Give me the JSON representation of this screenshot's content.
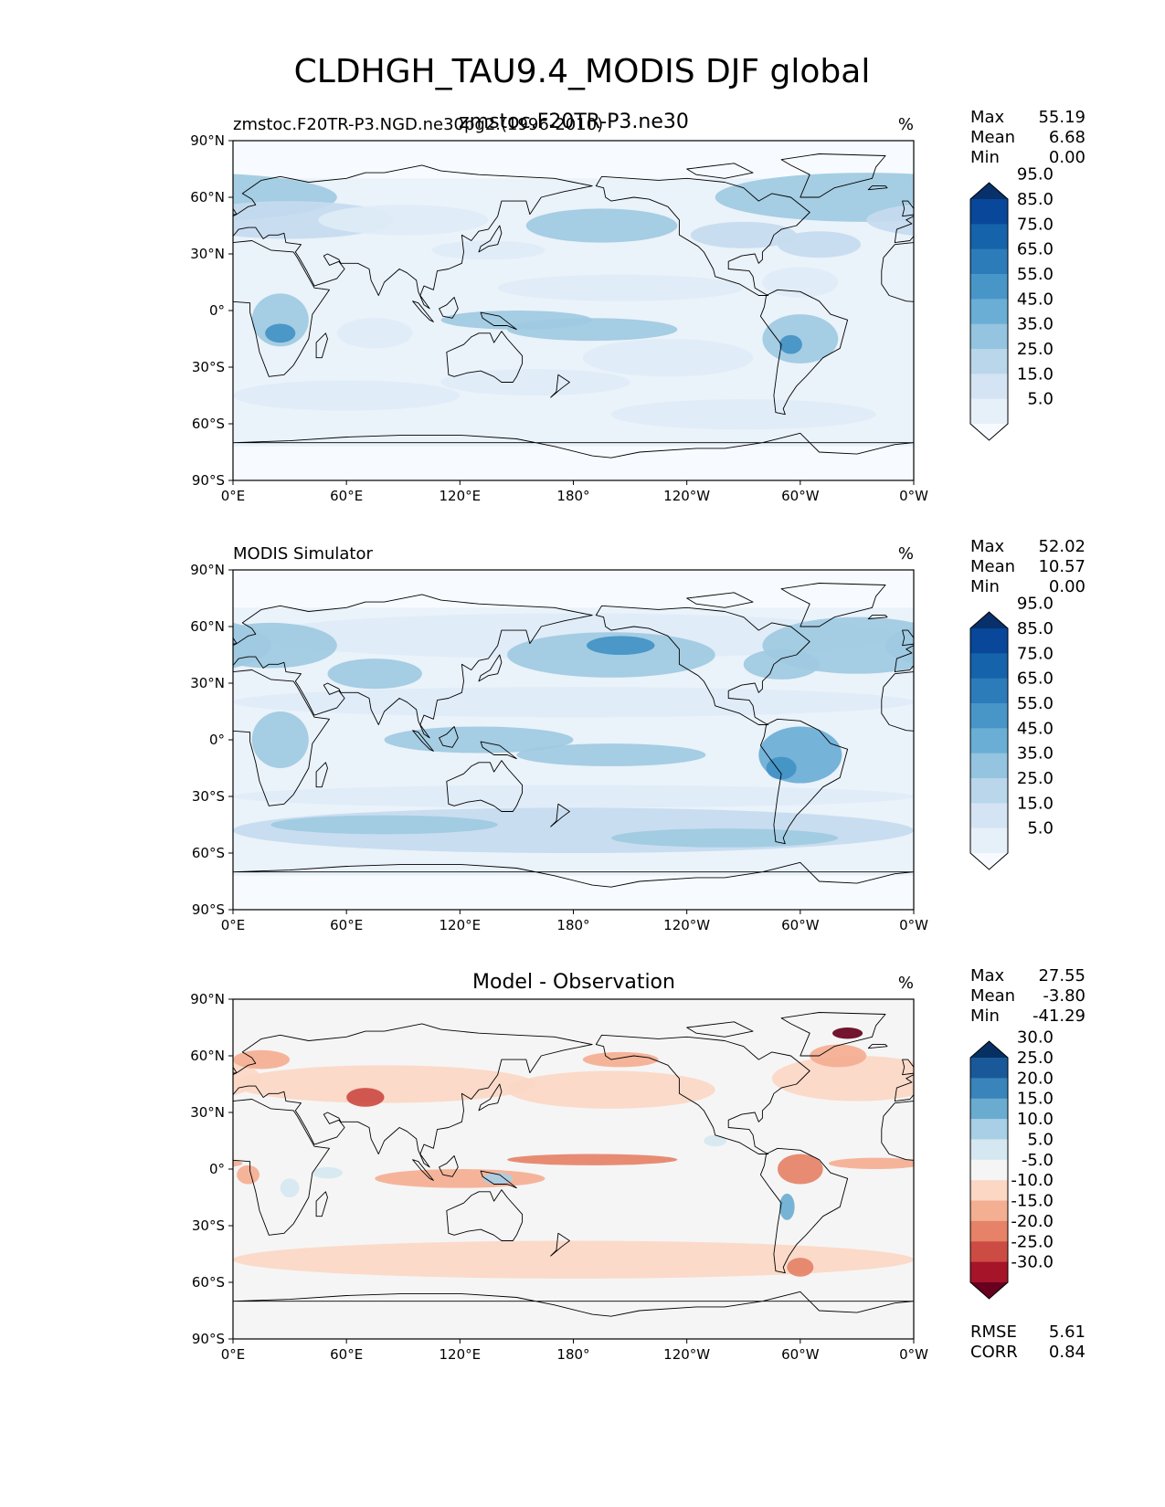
{
  "figure": {
    "title": "CLDHGH_TAU9.4_MODIS DJF global"
  },
  "chart_data": [
    {
      "type": "heatmap",
      "map_projection": "PlateCarree",
      "left_title": "zmstoc.F20TR-P3.NGD.ne30pg2.(1996-2010)",
      "overlapping_title": "zmstoc.F20TR-P3.ne30",
      "center_title": "",
      "units": "%",
      "stats": [
        {
          "label": "Max",
          "value": "55.19"
        },
        {
          "label": "Mean",
          "value": "6.68"
        },
        {
          "label": "Min",
          "value": "0.00"
        }
      ],
      "colorbar": {
        "colormap": "Blues",
        "levels": [
          "5.0",
          "15.0",
          "25.0",
          "35.0",
          "45.0",
          "55.0",
          "65.0",
          "75.0",
          "85.0",
          "95.0"
        ],
        "extend": "both"
      },
      "x_ticks": [
        "0°E",
        "60°E",
        "120°E",
        "180°",
        "120°W",
        "60°W",
        "0°W"
      ],
      "y_ticks": [
        "90°N",
        "60°N",
        "30°N",
        "0°",
        "30°S",
        "60°S",
        "90°S"
      ],
      "xlim": [
        0,
        360
      ],
      "ylim": [
        -90,
        90
      ],
      "grid": false,
      "features": [
        {
          "lon": 335,
          "lat": 60,
          "rx": 80,
          "ry": 13,
          "value": 18
        },
        {
          "lon": 30,
          "lat": 48,
          "rx": 55,
          "ry": 10,
          "value": 12
        },
        {
          "lon": 90,
          "lat": 48,
          "rx": 45,
          "ry": 8,
          "value": 10
        },
        {
          "lon": 195,
          "lat": 45,
          "rx": 40,
          "ry": 9,
          "value": 18
        },
        {
          "lon": 270,
          "lat": 40,
          "rx": 28,
          "ry": 7,
          "value": 15
        },
        {
          "lon": 310,
          "lat": 35,
          "rx": 22,
          "ry": 7,
          "value": 14
        },
        {
          "lon": 135,
          "lat": 32,
          "rx": 30,
          "ry": 5,
          "value": 10
        },
        {
          "lon": 205,
          "lat": 12,
          "rx": 65,
          "ry": 7,
          "value": 8
        },
        {
          "lon": 300,
          "lat": 15,
          "rx": 20,
          "ry": 8,
          "value": 10
        },
        {
          "lon": 25,
          "lat": -5,
          "rx": 15,
          "ry": 14,
          "value": 22
        },
        {
          "lon": 25,
          "lat": -12,
          "rx": 8,
          "ry": 5,
          "value": 33
        },
        {
          "lon": 75,
          "lat": -12,
          "rx": 20,
          "ry": 8,
          "value": 10
        },
        {
          "lon": 150,
          "lat": -5,
          "rx": 40,
          "ry": 5,
          "value": 22
        },
        {
          "lon": 190,
          "lat": -10,
          "rx": 45,
          "ry": 6,
          "value": 18
        },
        {
          "lon": 230,
          "lat": -25,
          "rx": 45,
          "ry": 10,
          "value": 9
        },
        {
          "lon": 300,
          "lat": -15,
          "rx": 20,
          "ry": 13,
          "value": 22
        },
        {
          "lon": 295,
          "lat": -18,
          "rx": 6,
          "ry": 5,
          "value": 33
        },
        {
          "lon": 160,
          "lat": -38,
          "rx": 50,
          "ry": 7,
          "value": 10
        },
        {
          "lon": 60,
          "lat": -45,
          "rx": 60,
          "ry": 8,
          "value": 10
        },
        {
          "lon": 270,
          "lat": -55,
          "rx": 70,
          "ry": 8,
          "value": 10
        }
      ]
    },
    {
      "type": "heatmap",
      "map_projection": "PlateCarree",
      "left_title": "MODIS Simulator",
      "center_title": "",
      "units": "%",
      "stats": [
        {
          "label": "Max",
          "value": "52.02"
        },
        {
          "label": "Mean",
          "value": "10.57"
        },
        {
          "label": "Min",
          "value": "0.00"
        }
      ],
      "colorbar": {
        "colormap": "Blues",
        "levels": [
          "5.0",
          "15.0",
          "25.0",
          "35.0",
          "45.0",
          "55.0",
          "65.0",
          "75.0",
          "85.0",
          "95.0"
        ],
        "extend": "both"
      },
      "x_ticks": [
        "0°E",
        "60°E",
        "120°E",
        "180°",
        "120°W",
        "60°W",
        "0°W"
      ],
      "y_ticks": [
        "90°N",
        "60°N",
        "30°N",
        "0°",
        "30°S",
        "60°S",
        "90°S"
      ],
      "xlim": [
        0,
        360
      ],
      "ylim": [
        -90,
        90
      ],
      "grid": false,
      "features": [
        {
          "lon": 180,
          "lat": 55,
          "rx": 170,
          "ry": 12,
          "value": 10
        },
        {
          "lon": 20,
          "lat": 50,
          "rx": 35,
          "ry": 12,
          "value": 20
        },
        {
          "lon": 75,
          "lat": 35,
          "rx": 25,
          "ry": 8,
          "value": 22
        },
        {
          "lon": 200,
          "lat": 45,
          "rx": 55,
          "ry": 12,
          "value": 22
        },
        {
          "lon": 205,
          "lat": 50,
          "rx": 18,
          "ry": 5,
          "value": 30
        },
        {
          "lon": 330,
          "lat": 50,
          "rx": 50,
          "ry": 15,
          "value": 22
        },
        {
          "lon": 290,
          "lat": 40,
          "rx": 20,
          "ry": 8,
          "value": 20
        },
        {
          "lon": 180,
          "lat": 20,
          "rx": 180,
          "ry": 8,
          "value": 10
        },
        {
          "lon": 25,
          "lat": 0,
          "rx": 15,
          "ry": 15,
          "value": 22
        },
        {
          "lon": 130,
          "lat": 0,
          "rx": 50,
          "ry": 7,
          "value": 22
        },
        {
          "lon": 200,
          "lat": -8,
          "rx": 50,
          "ry": 6,
          "value": 18
        },
        {
          "lon": 300,
          "lat": -8,
          "rx": 22,
          "ry": 15,
          "value": 25
        },
        {
          "lon": 290,
          "lat": -15,
          "rx": 8,
          "ry": 6,
          "value": 35
        },
        {
          "lon": 180,
          "lat": -48,
          "rx": 180,
          "ry": 12,
          "value": 15
        },
        {
          "lon": 180,
          "lat": -30,
          "rx": 180,
          "ry": 6,
          "value": 8
        },
        {
          "lon": 80,
          "lat": -45,
          "rx": 60,
          "ry": 5,
          "value": 20
        },
        {
          "lon": 260,
          "lat": -52,
          "rx": 60,
          "ry": 5,
          "value": 20
        }
      ]
    },
    {
      "type": "heatmap",
      "map_projection": "PlateCarree",
      "left_title": "",
      "center_title": "Model - Observation",
      "units": "%",
      "stats": [
        {
          "label": "Max",
          "value": "27.55"
        },
        {
          "label": "Mean",
          "value": "-3.80"
        },
        {
          "label": "Min",
          "value": "-41.29"
        }
      ],
      "bottom_stats": [
        {
          "label": "RMSE",
          "value": "5.61"
        },
        {
          "label": "CORR",
          "value": "0.84"
        }
      ],
      "colorbar": {
        "colormap": "RdBu",
        "levels": [
          "-30.0",
          "-25.0",
          "-20.0",
          "-15.0",
          "-10.0",
          "-5.0",
          "5.0",
          "10.0",
          "15.0",
          "20.0",
          "25.0",
          "30.0"
        ],
        "extend": "both"
      },
      "x_ticks": [
        "0°E",
        "60°E",
        "120°E",
        "180°",
        "120°W",
        "60°W",
        "0°W"
      ],
      "y_ticks": [
        "90°N",
        "60°N",
        "30°N",
        "0°",
        "30°S",
        "60°S",
        "90°S"
      ],
      "xlim": [
        0,
        360
      ],
      "ylim": [
        -90,
        90
      ],
      "grid": false,
      "features": [
        {
          "lon": 180,
          "lat": -48,
          "rx": 180,
          "ry": 10,
          "value": -7
        },
        {
          "lon": 80,
          "lat": 45,
          "rx": 80,
          "ry": 10,
          "value": -7
        },
        {
          "lon": 200,
          "lat": 42,
          "rx": 55,
          "ry": 10,
          "value": -8
        },
        {
          "lon": 330,
          "lat": 48,
          "rx": 45,
          "ry": 12,
          "value": -8
        },
        {
          "lon": 70,
          "lat": 38,
          "rx": 10,
          "ry": 5,
          "value": -22
        },
        {
          "lon": 15,
          "lat": 58,
          "rx": 15,
          "ry": 5,
          "value": -12
        },
        {
          "lon": 205,
          "lat": 58,
          "rx": 20,
          "ry": 4,
          "value": -15
        },
        {
          "lon": 325,
          "lat": 72,
          "rx": 8,
          "ry": 3,
          "value": -35
        },
        {
          "lon": 320,
          "lat": 60,
          "rx": 15,
          "ry": 6,
          "value": -12
        },
        {
          "lon": 190,
          "lat": 5,
          "rx": 45,
          "ry": 3,
          "value": -17
        },
        {
          "lon": 340,
          "lat": 3,
          "rx": 25,
          "ry": 3,
          "value": -12
        },
        {
          "lon": 120,
          "lat": -5,
          "rx": 45,
          "ry": 5,
          "value": -11
        },
        {
          "lon": 8,
          "lat": -3,
          "rx": 6,
          "ry": 5,
          "value": -14
        },
        {
          "lon": 300,
          "lat": 0,
          "rx": 12,
          "ry": 8,
          "value": -18
        },
        {
          "lon": 300,
          "lat": -52,
          "rx": 7,
          "ry": 5,
          "value": -18
        },
        {
          "lon": 293,
          "lat": -20,
          "rx": 4,
          "ry": 7,
          "value": 18
        },
        {
          "lon": 140,
          "lat": -5,
          "rx": 8,
          "ry": 3,
          "value": 12
        },
        {
          "lon": 50,
          "lat": -2,
          "rx": 8,
          "ry": 3,
          "value": 7
        },
        {
          "lon": 30,
          "lat": -10,
          "rx": 5,
          "ry": 5,
          "value": 7
        },
        {
          "lon": 255,
          "lat": 15,
          "rx": 6,
          "ry": 3,
          "value": 7
        }
      ]
    }
  ]
}
